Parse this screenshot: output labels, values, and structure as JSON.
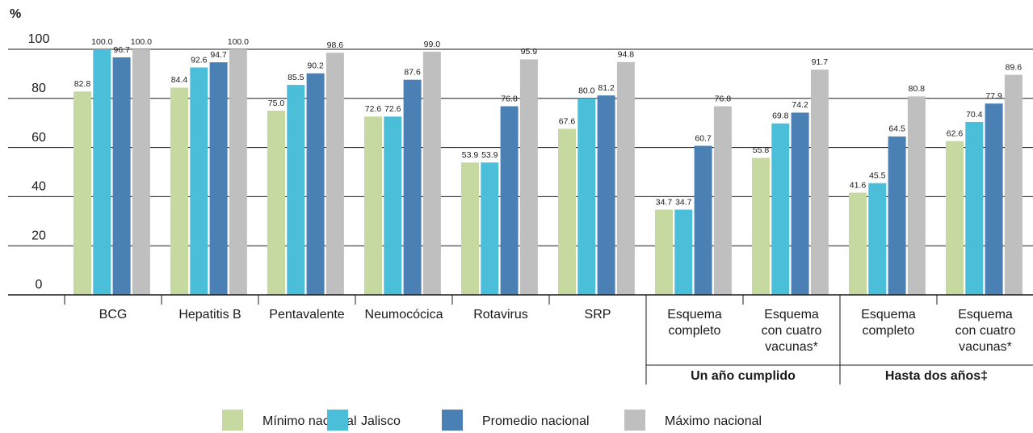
{
  "chart_data": {
    "type": "bar",
    "y_label": "%",
    "categories": [
      "BCG",
      "Hepatitis B",
      "Pentavalente",
      "Neumocócica",
      "Rotavirus",
      "SRP",
      "Esquema\ncompleto",
      "Esquema\ncon cuatro\nvacunas*",
      "Esquema\ncompleto",
      "Esquema\ncon cuatro\nvacunas*"
    ],
    "group_labels": [
      "Un año cumplido",
      "Hasta dos años‡"
    ],
    "series": [
      {
        "name": "Mínimo nacional",
        "color": "#c5d9a0",
        "values": [
          82.8,
          84.4,
          75.0,
          72.6,
          53.9,
          67.6,
          34.7,
          55.8,
          41.6,
          62.6
        ],
        "value_labels": [
          "82.8",
          "84.4",
          "75.0",
          "72.6",
          "53.9",
          "67.6",
          "34.7",
          "55.8",
          "41.6",
          "62.6"
        ]
      },
      {
        "name": "Jalisco",
        "color": "#4bbfd9",
        "values": [
          100.0,
          92.6,
          85.5,
          72.6,
          53.9,
          80.0,
          34.7,
          69.8,
          45.5,
          70.4
        ],
        "value_labels": [
          "100.0",
          "92.6",
          "85.5",
          "72.6",
          "53.9",
          "80.0",
          "34.7",
          "69.8",
          "45.5",
          "70.4"
        ]
      },
      {
        "name": "Promedio nacional",
        "color": "#4a80b4",
        "values": [
          96.7,
          94.7,
          90.2,
          87.6,
          76.8,
          81.2,
          60.7,
          74.2,
          64.5,
          77.9
        ],
        "value_labels": [
          "96.7",
          "94.7",
          "90.2",
          "87.6",
          "76.8",
          "81.2",
          "60.7",
          "74.2",
          "64.5",
          "77.9"
        ]
      },
      {
        "name": "Máximo nacional",
        "color": "#bfbfbf",
        "values": [
          100.0,
          100.0,
          98.6,
          99.0,
          95.9,
          94.8,
          76.8,
          91.7,
          80.8,
          89.6
        ],
        "value_labels": [
          "100.0",
          "100.0",
          "98.6",
          "99.0",
          "95.9",
          "94.8",
          "76.8",
          "91.7",
          "80.8",
          "89.6"
        ]
      }
    ],
    "ylim": [
      0,
      100
    ],
    "yticks": [
      0,
      20,
      40,
      60,
      80,
      100
    ],
    "grid": true,
    "legend": "bottom"
  }
}
